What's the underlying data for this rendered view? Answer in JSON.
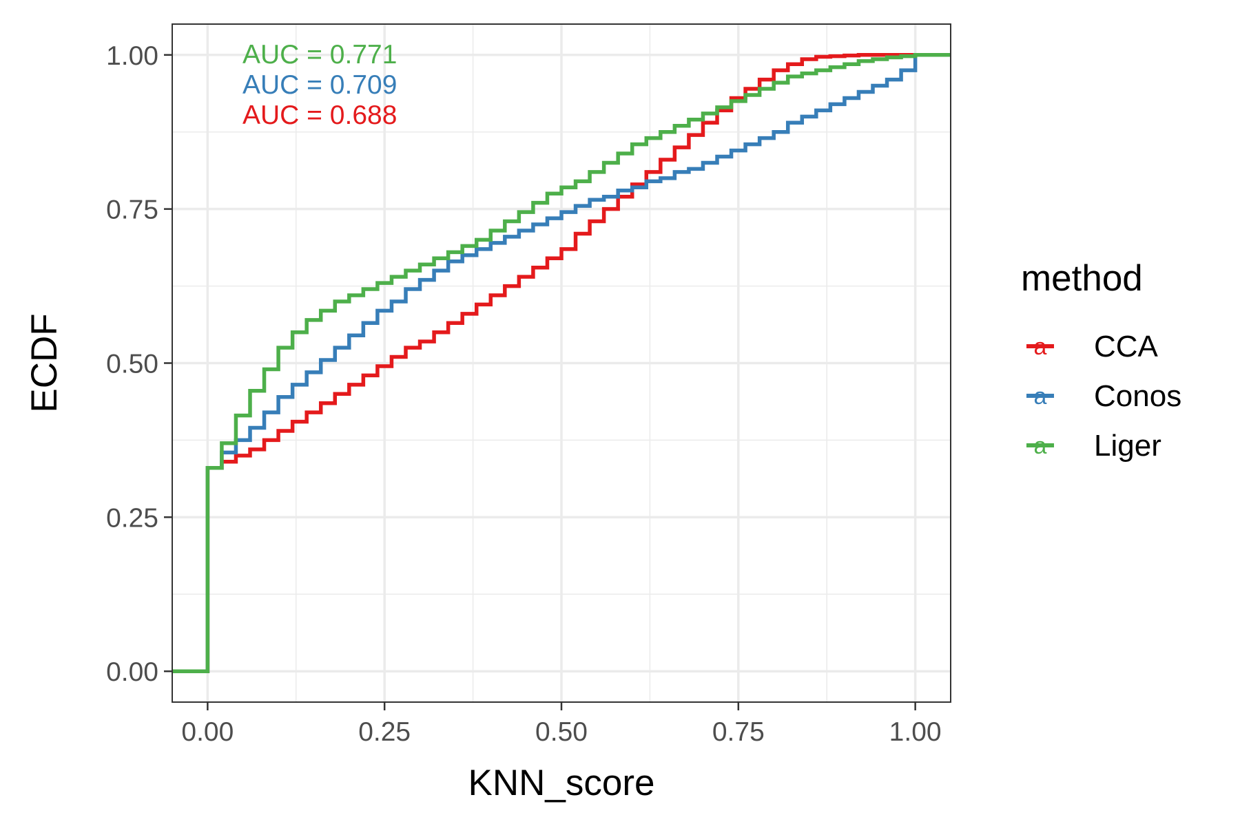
{
  "chart_data": {
    "type": "line",
    "xlabel": "KNN_score",
    "ylabel": "ECDF",
    "xlim": [
      -0.05,
      1.05
    ],
    "ylim": [
      -0.05,
      1.05
    ],
    "x_ticks": [
      0.0,
      0.25,
      0.5,
      0.75,
      1.0
    ],
    "x_tick_labels": [
      "0.00",
      "0.25",
      "0.50",
      "0.75",
      "1.00"
    ],
    "y_ticks": [
      0.0,
      0.25,
      0.5,
      0.75,
      1.0
    ],
    "y_tick_labels": [
      "0.00",
      "0.25",
      "0.50",
      "0.75",
      "1.00"
    ],
    "grid": true,
    "legend": {
      "title": "method",
      "position": "right",
      "glyph": "a"
    },
    "annotations": [
      {
        "text": "AUC = 0.771",
        "color": "#4daf4a"
      },
      {
        "text": "AUC = 0.709",
        "color": "#377eb8"
      },
      {
        "text": "AUC = 0.688",
        "color": "#e41a1c"
      }
    ],
    "series": [
      {
        "name": "CCA",
        "color": "#e41a1c",
        "step": "post",
        "x": [
          -0.05,
          0.0,
          0.02,
          0.04,
          0.06,
          0.08,
          0.1,
          0.12,
          0.14,
          0.16,
          0.18,
          0.2,
          0.22,
          0.24,
          0.26,
          0.28,
          0.3,
          0.32,
          0.34,
          0.36,
          0.38,
          0.4,
          0.42,
          0.44,
          0.46,
          0.48,
          0.5,
          0.52,
          0.54,
          0.56,
          0.58,
          0.6,
          0.62,
          0.64,
          0.66,
          0.68,
          0.7,
          0.72,
          0.74,
          0.76,
          0.78,
          0.8,
          0.82,
          0.84,
          0.86,
          0.88,
          0.9,
          0.92,
          0.94,
          0.96,
          0.98,
          1.0,
          1.05
        ],
        "y": [
          0.0,
          0.33,
          0.34,
          0.35,
          0.36,
          0.375,
          0.39,
          0.405,
          0.42,
          0.435,
          0.45,
          0.465,
          0.48,
          0.495,
          0.51,
          0.525,
          0.535,
          0.55,
          0.565,
          0.58,
          0.595,
          0.61,
          0.625,
          0.64,
          0.655,
          0.67,
          0.685,
          0.71,
          0.73,
          0.75,
          0.77,
          0.79,
          0.81,
          0.83,
          0.85,
          0.87,
          0.89,
          0.91,
          0.93,
          0.945,
          0.96,
          0.975,
          0.985,
          0.993,
          0.997,
          0.998,
          0.999,
          1.0,
          1.0,
          1.0,
          1.0,
          1.0,
          1.0
        ]
      },
      {
        "name": "Conos",
        "color": "#377eb8",
        "step": "post",
        "x": [
          -0.05,
          0.0,
          0.02,
          0.04,
          0.06,
          0.08,
          0.1,
          0.12,
          0.14,
          0.16,
          0.18,
          0.2,
          0.22,
          0.24,
          0.26,
          0.28,
          0.3,
          0.32,
          0.34,
          0.36,
          0.38,
          0.4,
          0.42,
          0.44,
          0.46,
          0.48,
          0.5,
          0.52,
          0.54,
          0.56,
          0.58,
          0.6,
          0.62,
          0.64,
          0.66,
          0.68,
          0.7,
          0.72,
          0.74,
          0.76,
          0.78,
          0.8,
          0.82,
          0.84,
          0.86,
          0.88,
          0.9,
          0.92,
          0.94,
          0.96,
          0.98,
          1.0,
          1.05
        ],
        "y": [
          0.0,
          0.33,
          0.355,
          0.375,
          0.395,
          0.42,
          0.445,
          0.465,
          0.485,
          0.505,
          0.525,
          0.545,
          0.565,
          0.585,
          0.6,
          0.62,
          0.635,
          0.65,
          0.665,
          0.675,
          0.685,
          0.695,
          0.705,
          0.715,
          0.725,
          0.735,
          0.745,
          0.755,
          0.765,
          0.77,
          0.78,
          0.785,
          0.795,
          0.8,
          0.81,
          0.815,
          0.825,
          0.835,
          0.845,
          0.855,
          0.865,
          0.875,
          0.89,
          0.9,
          0.91,
          0.92,
          0.93,
          0.94,
          0.95,
          0.96,
          0.975,
          1.0,
          1.0
        ]
      },
      {
        "name": "Liger",
        "color": "#4daf4a",
        "step": "post",
        "x": [
          -0.05,
          0.0,
          0.02,
          0.04,
          0.06,
          0.08,
          0.1,
          0.12,
          0.14,
          0.16,
          0.18,
          0.2,
          0.22,
          0.24,
          0.26,
          0.28,
          0.3,
          0.32,
          0.34,
          0.36,
          0.38,
          0.4,
          0.42,
          0.44,
          0.46,
          0.48,
          0.5,
          0.52,
          0.54,
          0.56,
          0.58,
          0.6,
          0.62,
          0.64,
          0.66,
          0.68,
          0.7,
          0.72,
          0.74,
          0.76,
          0.78,
          0.8,
          0.82,
          0.84,
          0.86,
          0.88,
          0.9,
          0.92,
          0.94,
          0.96,
          0.98,
          1.0,
          1.05
        ],
        "y": [
          0.0,
          0.33,
          0.37,
          0.415,
          0.455,
          0.49,
          0.525,
          0.55,
          0.57,
          0.585,
          0.6,
          0.61,
          0.62,
          0.63,
          0.64,
          0.65,
          0.66,
          0.67,
          0.68,
          0.69,
          0.7,
          0.715,
          0.73,
          0.745,
          0.76,
          0.775,
          0.785,
          0.795,
          0.81,
          0.825,
          0.84,
          0.855,
          0.865,
          0.875,
          0.885,
          0.895,
          0.905,
          0.915,
          0.925,
          0.935,
          0.945,
          0.955,
          0.965,
          0.97,
          0.975,
          0.98,
          0.985,
          0.99,
          0.993,
          0.996,
          0.998,
          1.0,
          1.0
        ]
      }
    ]
  }
}
